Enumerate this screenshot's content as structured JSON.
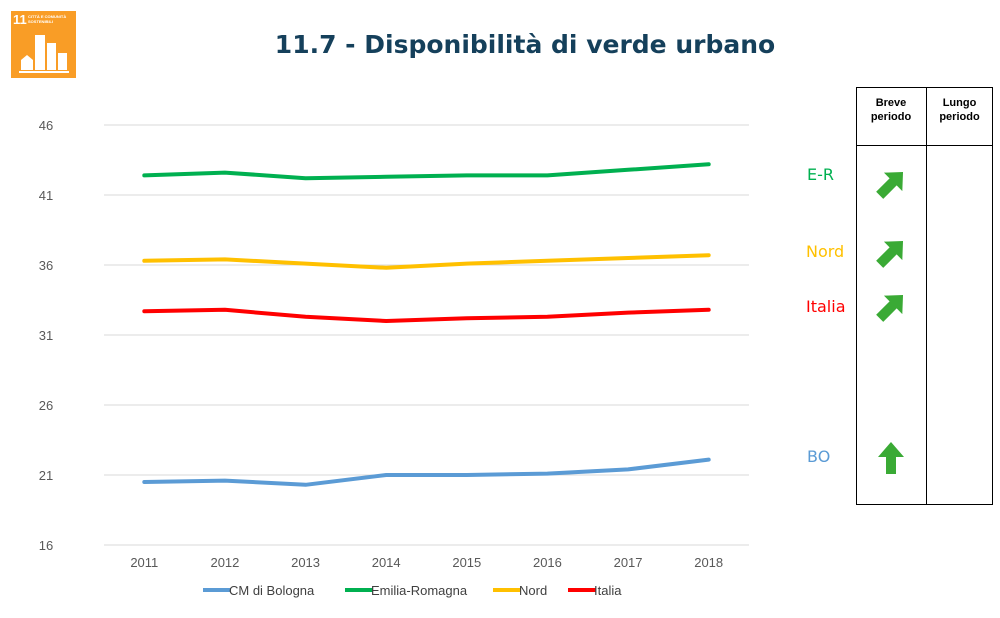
{
  "sdg_badge": {
    "number": "11",
    "label": "CITTÀ E COMUNITÀ SOSTENIBILI"
  },
  "title": "11.7 - Disponibilità di verde urbano",
  "chart_data": {
    "type": "line",
    "title": "11.7 - Disponibilità di verde urbano",
    "x": [
      "2011",
      "2012",
      "2013",
      "2014",
      "2015",
      "2016",
      "2017",
      "2018"
    ],
    "ylim": [
      16,
      46
    ],
    "yticks": [
      16,
      21,
      26,
      31,
      36,
      41,
      46
    ],
    "grid": true,
    "legend_position": "bottom",
    "series": [
      {
        "name": "CM di Bologna",
        "color": "#5b9bd5",
        "values": [
          20.5,
          20.6,
          20.3,
          21.0,
          21.0,
          21.1,
          21.4,
          22.1
        ]
      },
      {
        "name": "Emilia-Romagna",
        "color": "#00b050",
        "values": [
          42.4,
          42.6,
          42.2,
          42.3,
          42.4,
          42.4,
          42.8,
          43.2
        ]
      },
      {
        "name": "Nord",
        "color": "#ffc000",
        "values": [
          36.3,
          36.4,
          36.1,
          35.8,
          36.1,
          36.3,
          36.5,
          36.7
        ]
      },
      {
        "name": "Italia",
        "color": "#ff0000",
        "values": [
          32.7,
          32.8,
          32.3,
          32.0,
          32.2,
          32.3,
          32.6,
          32.8
        ]
      }
    ]
  },
  "trend_table": {
    "header_short": "Breve periodo",
    "header_long": "Lungo periodo",
    "rows": [
      {
        "label": "E-R",
        "color": "#00b050",
        "short_trend": "up-right-arrow"
      },
      {
        "label": "Nord",
        "color": "#ffc000",
        "short_trend": "up-right-arrow"
      },
      {
        "label": "Italia",
        "color": "#ff0000",
        "short_trend": "up-right-arrow"
      },
      {
        "label": "BO",
        "color": "#5b9bd5",
        "short_trend": "up-arrow"
      }
    ],
    "arrow_color": "#3aaa35"
  }
}
